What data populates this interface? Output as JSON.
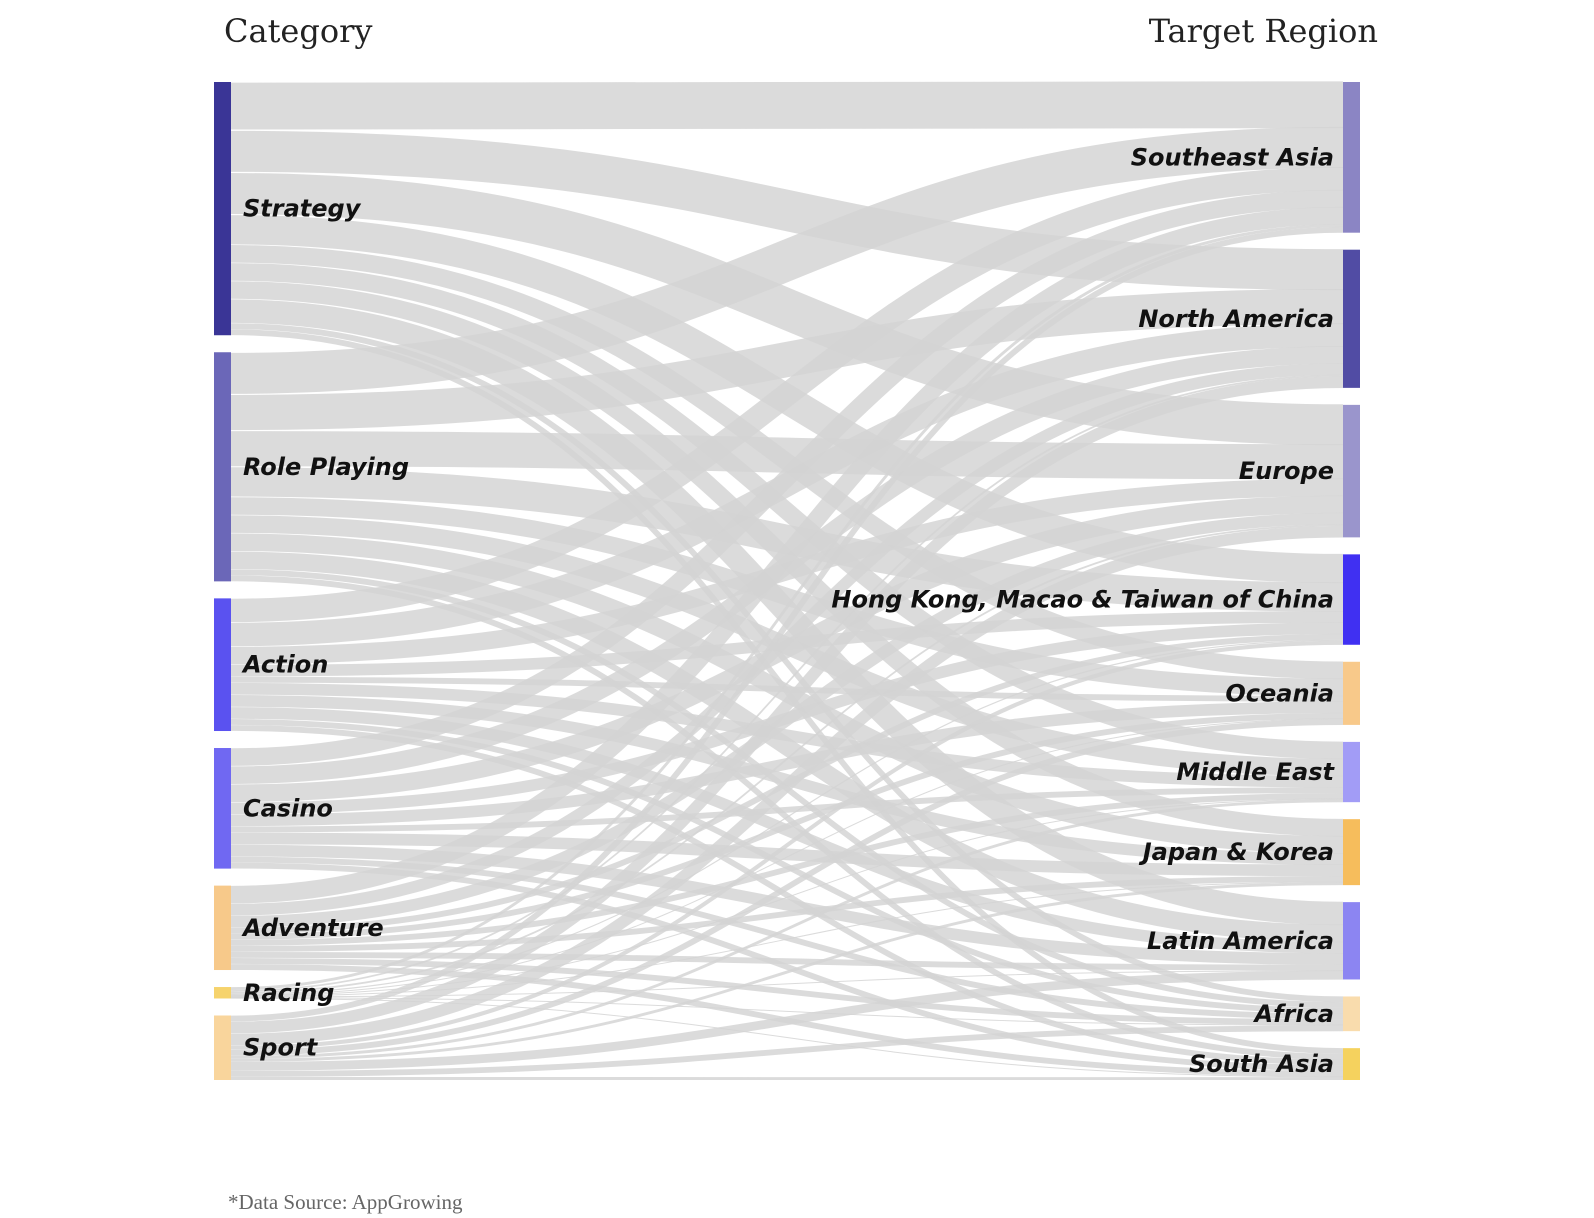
{
  "headers": {
    "left": "Category",
    "right": "Target Region"
  },
  "source_note": "*Data Source: AppGrowing",
  "chart_data": {
    "type": "sankey",
    "left_column_label": "Category",
    "right_column_label": "Target Region",
    "link_color": "#d3d3d3",
    "sources": [
      {
        "name": "Strategy",
        "color": "#3a3596"
      },
      {
        "name": "Role Playing",
        "color": "#6b67b8"
      },
      {
        "name": "Action",
        "color": "#5a52f0"
      },
      {
        "name": "Casino",
        "color": "#7068f2"
      },
      {
        "name": "Adventure",
        "color": "#f7c98a"
      },
      {
        "name": "Racing",
        "color": "#f6d36c"
      },
      {
        "name": "Sport",
        "color": "#f9d59c"
      }
    ],
    "targets": [
      {
        "name": "Southeast Asia",
        "color": "#8b85c4"
      },
      {
        "name": "North America",
        "color": "#514ca4"
      },
      {
        "name": "Europe",
        "color": "#9a95cc"
      },
      {
        "name": "Hong Kong, Macao & Taiwan of China",
        "color": "#4030f2"
      },
      {
        "name": "Oceania",
        "color": "#f8c98a"
      },
      {
        "name": "Middle East",
        "color": "#a29cf6"
      },
      {
        "name": "Japan & Korea",
        "color": "#f6bd5c"
      },
      {
        "name": "Latin America",
        "color": "#8c85f2"
      },
      {
        "name": "Africa",
        "color": "#f9dcad"
      },
      {
        "name": "South Asia",
        "color": "#f5d25e"
      }
    ],
    "flows": [
      [
        8,
        7,
        7,
        5,
        3,
        3,
        3,
        4,
        1,
        1
      ],
      [
        7,
        6,
        6,
        5,
        3,
        3,
        3,
        3,
        1,
        1
      ],
      [
        4,
        4,
        3,
        2,
        1,
        2,
        2,
        2,
        1,
        1
      ],
      [
        3,
        3,
        3,
        2,
        2,
        1,
        2,
        2,
        1,
        1
      ],
      [
        3,
        2,
        2,
        1,
        1,
        1,
        1,
        1,
        1,
        1
      ],
      [
        0.5,
        0.3,
        0.3,
        0.2,
        0.1,
        0.1,
        0.1,
        0.1,
        0.1,
        0.1
      ],
      [
        1,
        2,
        2,
        0.7,
        1,
        0.5,
        0.5,
        1.5,
        1,
        0.5
      ]
    ]
  }
}
